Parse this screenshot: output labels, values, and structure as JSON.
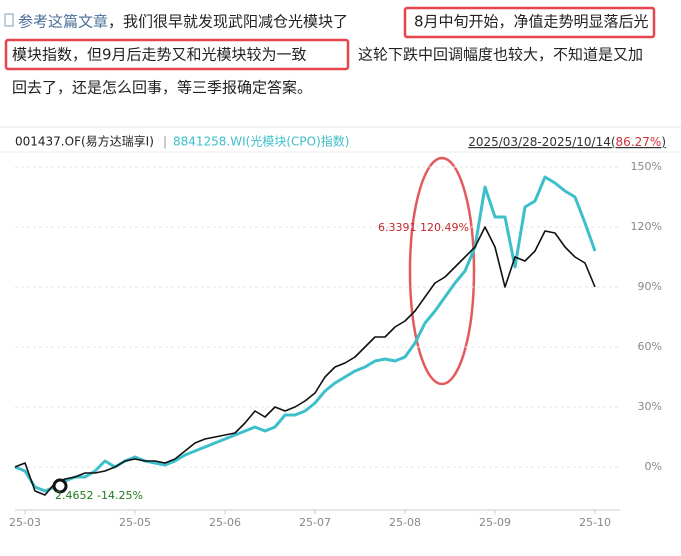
{
  "article": {
    "link": "参考这篇文章",
    "line1": "，我们很早就发现武阳减仓光模块了",
    "highlight1": "8月中旬开始，净值走势明显落后光",
    "highlight2": "模块指数，但9月后走势又和光模块较为一致",
    "line2": "这轮下跌中回调幅度也较大，不知道是又加",
    "line3": "回去了，还是怎么回事，等三季报确定答案。"
  },
  "chart_data": {
    "type": "line",
    "header_left": "001437.OF(易方达瑞享I)",
    "separator": "|",
    "header_index": "8841258.WI(光模块(CPO)指数)",
    "header_range": "2025/03/28-2025/10/14(",
    "header_return": "86.27%",
    "header_close": ")",
    "annotations": [
      "6.3391  120.49%",
      "2.4652  -14.25%"
    ],
    "categories": [
      null,
      "25-03",
      null,
      null,
      null,
      null,
      null,
      null,
      null,
      null,
      null,
      null,
      "25-05",
      null,
      null,
      null,
      null,
      null,
      null,
      null,
      null,
      "25-06",
      null,
      null,
      null,
      null,
      null,
      null,
      null,
      null,
      "25-07",
      null,
      null,
      null,
      null,
      null,
      null,
      null,
      null,
      "25-08",
      null,
      null,
      null,
      null,
      null,
      null,
      null,
      null,
      "25-09",
      null,
      null,
      null,
      null,
      null,
      null,
      null,
      null,
      null,
      "25-10"
    ],
    "series": [
      {
        "name": "001437.OF(易方达瑞享I)",
        "color": "#111111",
        "values": [
          0,
          2,
          -12,
          -14,
          -8,
          -6,
          -5,
          -3,
          -3,
          -2,
          0,
          3,
          4,
          3,
          3,
          2,
          4,
          8,
          12,
          14,
          15,
          16,
          17,
          22,
          28,
          25,
          30,
          28,
          30,
          33,
          37,
          45,
          50,
          52,
          55,
          60,
          65,
          65,
          70,
          73,
          78,
          85,
          92,
          95,
          100,
          105,
          110,
          120,
          110,
          90,
          105,
          103,
          108,
          118,
          117,
          110,
          105,
          102,
          90
        ]
      },
      {
        "name": "8841258.WI(光模块(CPO)指数)",
        "color": "#3cbfca",
        "values": [
          0,
          -2,
          -10,
          -12,
          -10,
          -7,
          -5,
          -5,
          -2,
          3,
          0,
          3,
          5,
          3,
          2,
          1,
          3,
          6,
          8,
          10,
          12,
          14,
          16,
          18,
          20,
          18,
          20,
          26,
          26,
          28,
          32,
          38,
          42,
          45,
          48,
          50,
          53,
          54,
          53,
          55,
          62,
          72,
          78,
          85,
          92,
          98,
          110,
          140,
          125,
          125,
          100,
          130,
          133,
          145,
          142,
          138,
          135,
          122,
          108
        ]
      }
    ],
    "ylim": [
      -21.5,
      156
    ],
    "yticks": [
      {
        "value": 0,
        "label": "0%"
      },
      {
        "value": 30,
        "label": "30%"
      },
      {
        "value": 60,
        "label": "60%"
      },
      {
        "value": 90,
        "label": "90%"
      },
      {
        "value": 120,
        "label": "120%"
      },
      {
        "value": 150,
        "label": "150%"
      }
    ],
    "grid": true
  }
}
